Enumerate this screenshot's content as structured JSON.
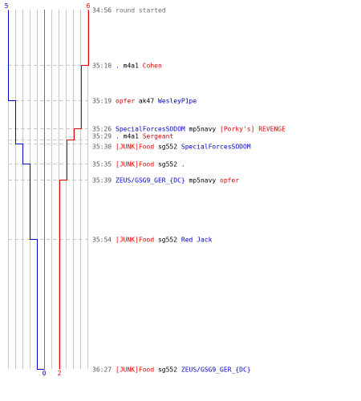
{
  "chart_data": {
    "type": "line",
    "title": "",
    "colors": {
      "blue_team": "#0000cc",
      "red_team": "#dd0000",
      "grid": "#c8c8c8",
      "dashed": "#c8c8c8",
      "text": "#000000",
      "time": "#555555"
    },
    "blue": {
      "start": "5",
      "end": "0",
      "levels": [
        5,
        4,
        3,
        2,
        1,
        0
      ]
    },
    "red": {
      "start": "6",
      "end": "2",
      "levels": [
        6,
        5,
        4,
        3,
        2
      ]
    },
    "events": [
      {
        "time": "34:56",
        "parts": [
          {
            "t": "round started",
            "c": "g"
          }
        ],
        "blue": 5,
        "red": 6
      },
      {
        "time": "35:10",
        "parts": [
          {
            "t": ". ",
            "c": "b"
          },
          {
            "t": "m4a1 ",
            "c": "k"
          },
          {
            "t": "Cohen",
            "c": "r"
          }
        ],
        "blue": 5,
        "red": 5
      },
      {
        "time": "35:19",
        "parts": [
          {
            "t": "opfer ",
            "c": "r"
          },
          {
            "t": "ak47 ",
            "c": "k"
          },
          {
            "t": "WesleyP1pe",
            "c": "b"
          }
        ],
        "blue": 4,
        "red": 5
      },
      {
        "time": "35:26",
        "parts": [
          {
            "t": "SpecialForcesSODOM ",
            "c": "b"
          },
          {
            "t": "mp5navy ",
            "c": "k"
          },
          {
            "t": "[Porky's] REVENGE",
            "c": "r"
          }
        ],
        "blue": 4,
        "red": 4
      },
      {
        "time": "35:29",
        "parts": [
          {
            "t": ". ",
            "c": "b"
          },
          {
            "t": "m4a1 ",
            "c": "k"
          },
          {
            "t": "Sergeant",
            "c": "r"
          }
        ],
        "blue": 4,
        "red": 3
      },
      {
        "time": "35:30",
        "parts": [
          {
            "t": "[JUNK]Food ",
            "c": "r"
          },
          {
            "t": "sg552 ",
            "c": "k"
          },
          {
            "t": "SpecialForcesSODOM",
            "c": "b"
          }
        ],
        "blue": 3,
        "red": 3
      },
      {
        "time": "35:35",
        "parts": [
          {
            "t": "[JUNK]Food ",
            "c": "r"
          },
          {
            "t": "sg552 ",
            "c": "k"
          },
          {
            "t": ".",
            "c": "b"
          }
        ],
        "blue": 2,
        "red": 3
      },
      {
        "time": "35:39",
        "parts": [
          {
            "t": "ZEUS/GSG9_GER_{DC} ",
            "c": "b"
          },
          {
            "t": "mp5navy ",
            "c": "k"
          },
          {
            "t": "opfer",
            "c": "r"
          }
        ],
        "blue": 2,
        "red": 2
      },
      {
        "time": "35:54",
        "parts": [
          {
            "t": "[JUNK]Food ",
            "c": "r"
          },
          {
            "t": "sg552 ",
            "c": "k"
          },
          {
            "t": "Red Jack",
            "c": "b"
          }
        ],
        "blue": 1,
        "red": 2
      },
      {
        "time": "36:27",
        "parts": [
          {
            "t": "[JUNK]Food ",
            "c": "r"
          },
          {
            "t": "sg552 ",
            "c": "k"
          },
          {
            "t": "ZEUS/GSG9_GER_{DC}",
            "c": "b"
          }
        ],
        "blue": 0,
        "red": 2
      }
    ]
  }
}
